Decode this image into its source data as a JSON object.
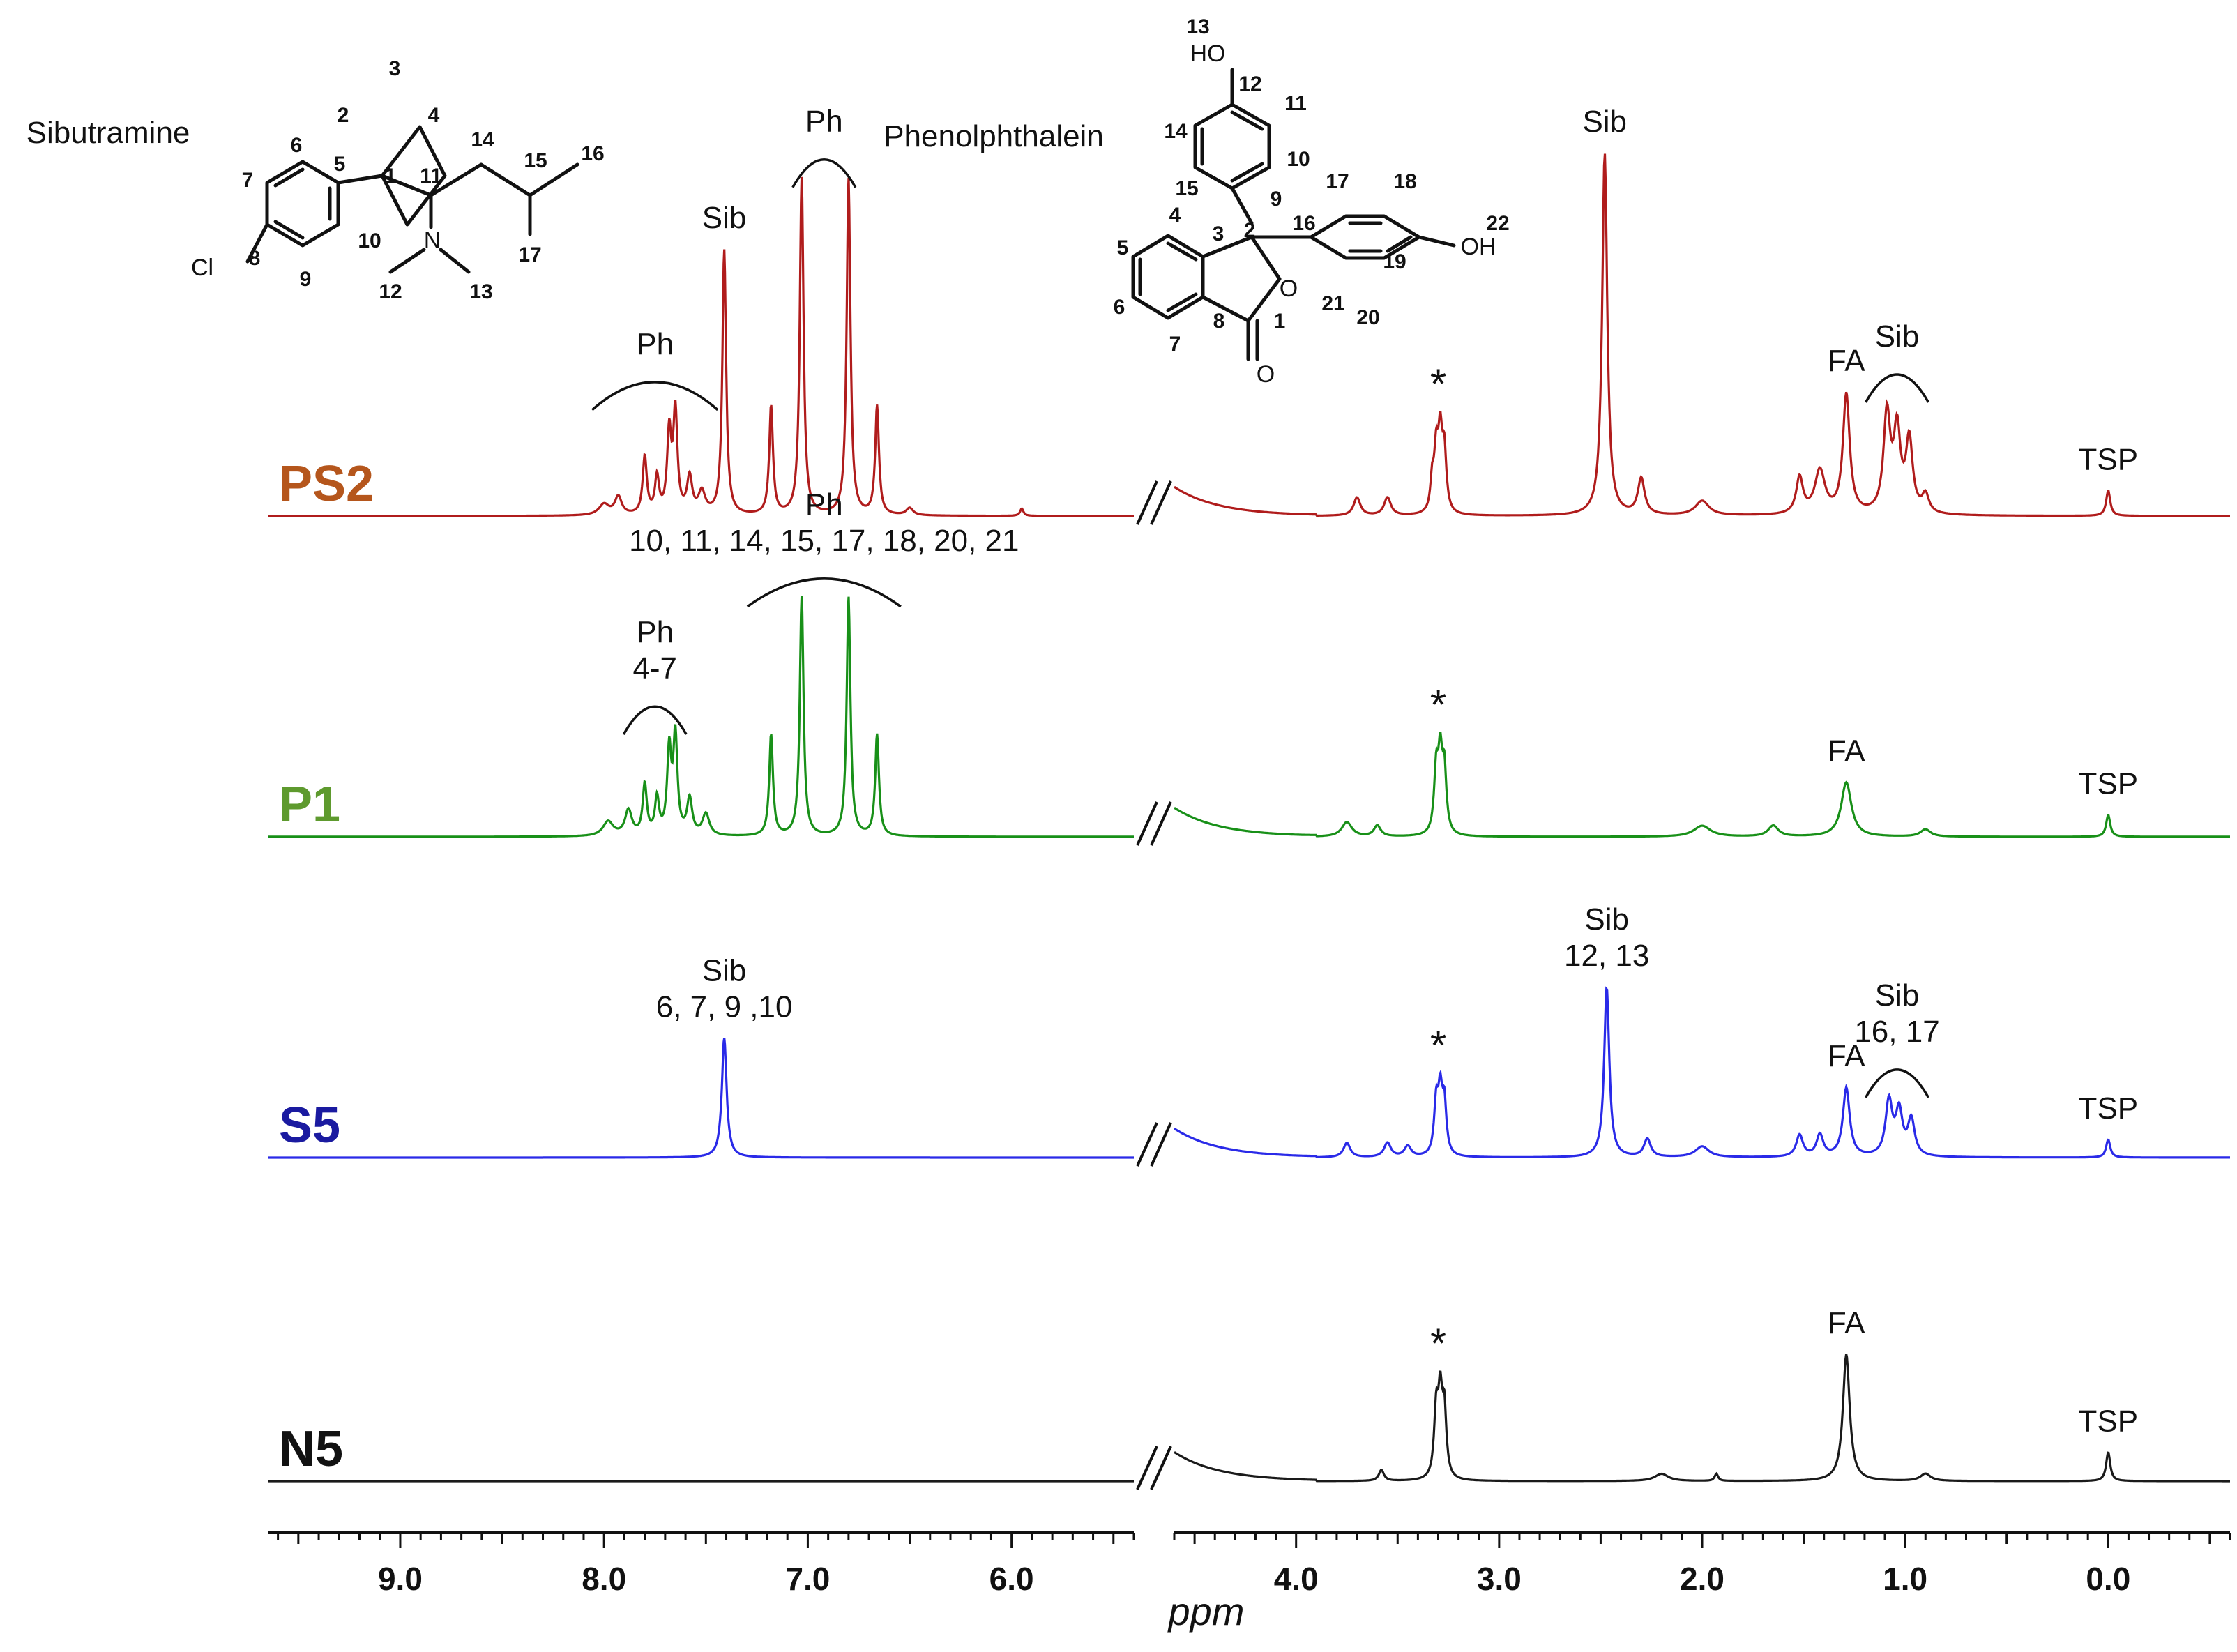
{
  "chart_data": {
    "type": "line",
    "xlabel": "ppm",
    "x_reversed": true,
    "axis_break": [
      4.6,
      5.4
    ],
    "xlim_left": [
      9.65,
      5.4
    ],
    "xlim_right": [
      4.6,
      -0.6
    ],
    "x_ticks": [
      "9.0",
      "8.0",
      "7.0",
      "6.0",
      "4.0",
      "3.0",
      "2.0",
      "1.0",
      "0.0"
    ],
    "legend": "labels left of each trace",
    "series": [
      {
        "name": "PS2",
        "color": "#b01c1c",
        "label_color": "#b5561c",
        "peaks": [
          {
            "ppm": 8.0,
            "h": 0.03,
            "w": 0.03
          },
          {
            "ppm": 7.93,
            "h": 0.05,
            "w": 0.02
          },
          {
            "ppm": 7.8,
            "h": 0.16,
            "w": 0.012
          },
          {
            "ppm": 7.74,
            "h": 0.1,
            "w": 0.012
          },
          {
            "ppm": 7.68,
            "h": 0.22,
            "w": 0.012
          },
          {
            "ppm": 7.65,
            "h": 0.28,
            "w": 0.012
          },
          {
            "ppm": 7.58,
            "h": 0.1,
            "w": 0.015
          },
          {
            "ppm": 7.52,
            "h": 0.06,
            "w": 0.02
          },
          {
            "ppm": 7.41,
            "h": 0.73,
            "w": 0.011
          },
          {
            "ppm": 7.18,
            "h": 0.3,
            "w": 0.011
          },
          {
            "ppm": 7.03,
            "h": 0.93,
            "w": 0.011
          },
          {
            "ppm": 6.8,
            "h": 0.93,
            "w": 0.011
          },
          {
            "ppm": 6.66,
            "h": 0.3,
            "w": 0.011
          },
          {
            "ppm": 6.5,
            "h": 0.02,
            "w": 0.02
          },
          {
            "ppm": 5.95,
            "h": 0.02,
            "w": 0.01
          },
          {
            "ppm": 3.31,
            "h": 0.16,
            "w": 0.012
          },
          {
            "ppm": 3.29,
            "h": 0.2,
            "w": 0.012
          },
          {
            "ppm": 3.27,
            "h": 0.16,
            "w": 0.012
          },
          {
            "ppm": 3.33,
            "h": 0.08,
            "w": 0.01
          },
          {
            "ppm": 3.7,
            "h": 0.05,
            "w": 0.02
          },
          {
            "ppm": 3.55,
            "h": 0.05,
            "w": 0.02
          },
          {
            "ppm": 2.48,
            "h": 1.0,
            "w": 0.015
          },
          {
            "ppm": 2.3,
            "h": 0.1,
            "w": 0.02
          },
          {
            "ppm": 2.0,
            "h": 0.04,
            "w": 0.04
          },
          {
            "ppm": 1.52,
            "h": 0.1,
            "w": 0.02
          },
          {
            "ppm": 1.42,
            "h": 0.12,
            "w": 0.03
          },
          {
            "ppm": 1.29,
            "h": 0.33,
            "w": 0.02
          },
          {
            "ppm": 1.09,
            "h": 0.27,
            "w": 0.02
          },
          {
            "ppm": 1.04,
            "h": 0.22,
            "w": 0.02
          },
          {
            "ppm": 0.98,
            "h": 0.2,
            "w": 0.02
          },
          {
            "ppm": 0.9,
            "h": 0.05,
            "w": 0.02
          },
          {
            "ppm": 0.0,
            "h": 0.07,
            "w": 0.012
          }
        ]
      },
      {
        "name": "P1",
        "color": "#189018",
        "label_color": "#5e9a2e",
        "peaks": [
          {
            "ppm": 7.98,
            "h": 0.04,
            "w": 0.03
          },
          {
            "ppm": 7.88,
            "h": 0.07,
            "w": 0.02
          },
          {
            "ppm": 7.8,
            "h": 0.14,
            "w": 0.012
          },
          {
            "ppm": 7.74,
            "h": 0.1,
            "w": 0.012
          },
          {
            "ppm": 7.68,
            "h": 0.23,
            "w": 0.012
          },
          {
            "ppm": 7.65,
            "h": 0.27,
            "w": 0.012
          },
          {
            "ppm": 7.58,
            "h": 0.1,
            "w": 0.015
          },
          {
            "ppm": 7.5,
            "h": 0.06,
            "w": 0.02
          },
          {
            "ppm": 7.18,
            "h": 0.28,
            "w": 0.011
          },
          {
            "ppm": 7.03,
            "h": 0.66,
            "w": 0.011
          },
          {
            "ppm": 6.8,
            "h": 0.66,
            "w": 0.011
          },
          {
            "ppm": 6.66,
            "h": 0.28,
            "w": 0.011
          },
          {
            "ppm": 3.31,
            "h": 0.17,
            "w": 0.012
          },
          {
            "ppm": 3.29,
            "h": 0.2,
            "w": 0.012
          },
          {
            "ppm": 3.27,
            "h": 0.17,
            "w": 0.012
          },
          {
            "ppm": 3.75,
            "h": 0.04,
            "w": 0.03
          },
          {
            "ppm": 3.6,
            "h": 0.03,
            "w": 0.02
          },
          {
            "ppm": 2.0,
            "h": 0.03,
            "w": 0.05
          },
          {
            "ppm": 1.65,
            "h": 0.03,
            "w": 0.03
          },
          {
            "ppm": 1.29,
            "h": 0.15,
            "w": 0.03
          },
          {
            "ppm": 0.9,
            "h": 0.02,
            "w": 0.03
          },
          {
            "ppm": 0.0,
            "h": 0.06,
            "w": 0.012
          }
        ]
      },
      {
        "name": "S5",
        "color": "#2a2ae8",
        "label_color": "#1a1aa0",
        "peaks": [
          {
            "ppm": 7.41,
            "h": 0.33,
            "w": 0.014
          },
          {
            "ppm": 3.31,
            "h": 0.14,
            "w": 0.012
          },
          {
            "ppm": 3.29,
            "h": 0.16,
            "w": 0.012
          },
          {
            "ppm": 3.27,
            "h": 0.14,
            "w": 0.012
          },
          {
            "ppm": 3.75,
            "h": 0.04,
            "w": 0.02
          },
          {
            "ppm": 3.55,
            "h": 0.04,
            "w": 0.02
          },
          {
            "ppm": 3.45,
            "h": 0.03,
            "w": 0.02
          },
          {
            "ppm": 2.47,
            "h": 0.47,
            "w": 0.015
          },
          {
            "ppm": 2.27,
            "h": 0.05,
            "w": 0.02
          },
          {
            "ppm": 2.0,
            "h": 0.03,
            "w": 0.04
          },
          {
            "ppm": 1.52,
            "h": 0.06,
            "w": 0.02
          },
          {
            "ppm": 1.42,
            "h": 0.06,
            "w": 0.02
          },
          {
            "ppm": 1.29,
            "h": 0.19,
            "w": 0.02
          },
          {
            "ppm": 1.08,
            "h": 0.15,
            "w": 0.02
          },
          {
            "ppm": 1.03,
            "h": 0.12,
            "w": 0.02
          },
          {
            "ppm": 0.97,
            "h": 0.1,
            "w": 0.02
          },
          {
            "ppm": 0.0,
            "h": 0.05,
            "w": 0.012
          }
        ]
      },
      {
        "name": "N5",
        "color": "#1a1a1a",
        "label_color": "#111111",
        "peaks": [
          {
            "ppm": 3.31,
            "h": 0.18,
            "w": 0.012
          },
          {
            "ppm": 3.29,
            "h": 0.21,
            "w": 0.012
          },
          {
            "ppm": 3.27,
            "h": 0.18,
            "w": 0.012
          },
          {
            "ppm": 3.58,
            "h": 0.03,
            "w": 0.015
          },
          {
            "ppm": 2.2,
            "h": 0.02,
            "w": 0.04
          },
          {
            "ppm": 1.93,
            "h": 0.02,
            "w": 0.01
          },
          {
            "ppm": 1.29,
            "h": 0.35,
            "w": 0.02
          },
          {
            "ppm": 0.9,
            "h": 0.02,
            "w": 0.03
          },
          {
            "ppm": 0.0,
            "h": 0.08,
            "w": 0.012
          }
        ]
      }
    ],
    "annotations": [
      {
        "series": "PS2",
        "ppm": 7.75,
        "lines": [
          "Ph"
        ],
        "bracket": true
      },
      {
        "series": "PS2",
        "ppm": 7.41,
        "lines": [
          "Sib"
        ]
      },
      {
        "series": "PS2",
        "ppm": 6.92,
        "lines": [
          "Ph"
        ],
        "bracket": true
      },
      {
        "series": "PS2",
        "ppm": 3.3,
        "lines": [
          "*"
        ]
      },
      {
        "series": "PS2",
        "ppm": 2.48,
        "lines": [
          "Sib"
        ]
      },
      {
        "series": "PS2",
        "ppm": 1.29,
        "lines": [
          "FA"
        ]
      },
      {
        "series": "PS2",
        "ppm": 1.04,
        "lines": [
          "Sib"
        ],
        "bracket": true
      },
      {
        "series": "PS2",
        "ppm": 0.0,
        "lines": [
          "TSP"
        ]
      },
      {
        "series": "P1",
        "ppm": 7.75,
        "lines": [
          "Ph",
          "4-7"
        ],
        "bracket": true
      },
      {
        "series": "P1",
        "ppm": 6.92,
        "lines": [
          "Ph",
          "10, 11, 14, 15, 17, 18, 20, 21"
        ],
        "bracket": true
      },
      {
        "series": "P1",
        "ppm": 3.3,
        "lines": [
          "*"
        ]
      },
      {
        "series": "P1",
        "ppm": 1.29,
        "lines": [
          "FA"
        ]
      },
      {
        "series": "P1",
        "ppm": 0.0,
        "lines": [
          "TSP"
        ]
      },
      {
        "series": "S5",
        "ppm": 7.41,
        "lines": [
          "Sib",
          "6, 7, 9 ,10"
        ]
      },
      {
        "series": "S5",
        "ppm": 3.3,
        "lines": [
          "*"
        ]
      },
      {
        "series": "S5",
        "ppm": 2.47,
        "lines": [
          "Sib",
          "12, 13"
        ]
      },
      {
        "series": "S5",
        "ppm": 1.29,
        "lines": [
          "FA"
        ]
      },
      {
        "series": "S5",
        "ppm": 1.04,
        "lines": [
          "Sib",
          "16, 17"
        ],
        "bracket": true
      },
      {
        "series": "S5",
        "ppm": 0.0,
        "lines": [
          "TSP"
        ]
      },
      {
        "series": "N5",
        "ppm": 3.3,
        "lines": [
          "*"
        ]
      },
      {
        "series": "N5",
        "ppm": 1.29,
        "lines": [
          "FA"
        ]
      },
      {
        "series": "N5",
        "ppm": 0.0,
        "lines": [
          "TSP"
        ]
      }
    ]
  },
  "structures": {
    "sibutramine": {
      "name": "Sibutramine",
      "atom_labels": [
        "3",
        "2",
        "4",
        "1",
        "11",
        "14",
        "15",
        "16",
        "17",
        "6",
        "5",
        "7",
        "8",
        "9",
        "10",
        "Cl",
        "N",
        "12",
        "13"
      ]
    },
    "phenolphthalein": {
      "name": "Phenolphthalein",
      "atom_labels": [
        "13",
        "HO",
        "12",
        "11",
        "14",
        "10",
        "9",
        "15",
        "2",
        "3",
        "4",
        "5",
        "6",
        "7",
        "8",
        "1",
        "O",
        "O",
        "16",
        "17",
        "18",
        "19",
        "20",
        "21",
        "22",
        "OH"
      ]
    }
  }
}
